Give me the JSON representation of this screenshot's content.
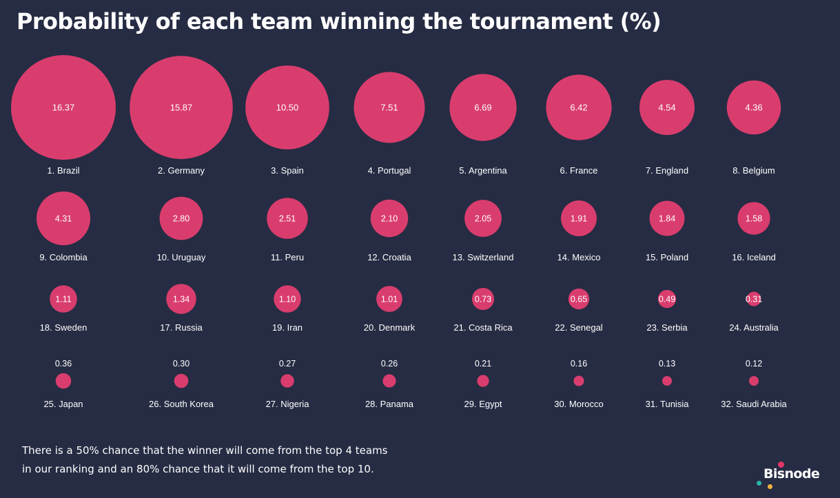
{
  "header": {
    "title": "Probability of each team winning the tournament (%)"
  },
  "footnote": {
    "line1": "There is a 50% chance that the winner will come from the top 4 teams",
    "line2": "in our ranking and an 80% chance that it will come from the top 10."
  },
  "logo": {
    "text": "Bisnode"
  },
  "colors": {
    "background": "#262c43",
    "bubble": "#d93d6e",
    "text": "#ffffff"
  },
  "chart_data": {
    "type": "bubble",
    "title": "Probability of each team winning the tournament (%)",
    "unit": "%",
    "items": [
      {
        "label": "1. Brazil",
        "value": "16.37"
      },
      {
        "label": "2. Germany",
        "value": "15.87"
      },
      {
        "label": "3. Spain",
        "value": "10.50"
      },
      {
        "label": "4. Portugal",
        "value": "7.51"
      },
      {
        "label": "5. Argentina",
        "value": "6.69"
      },
      {
        "label": "6. France",
        "value": "6.42"
      },
      {
        "label": "7. England",
        "value": "4.54"
      },
      {
        "label": "8. Belgium",
        "value": "4.36"
      },
      {
        "label": "9. Colombia",
        "value": "4.31"
      },
      {
        "label": "10. Uruguay",
        "value": "2.80"
      },
      {
        "label": "11. Peru",
        "value": "2.51"
      },
      {
        "label": "12. Croatia",
        "value": "2.10"
      },
      {
        "label": "13. Switzerland",
        "value": "2.05"
      },
      {
        "label": "14. Mexico",
        "value": "1.91"
      },
      {
        "label": "15. Poland",
        "value": "1.84"
      },
      {
        "label": "16. Iceland",
        "value": "1.58"
      },
      {
        "label": "18. Sweden",
        "value": "1.11"
      },
      {
        "label": "17. Russia",
        "value": "1.34"
      },
      {
        "label": "19. Iran",
        "value": "1.10"
      },
      {
        "label": "20. Denmark",
        "value": "1.01"
      },
      {
        "label": "21. Costa Rica",
        "value": "0.73"
      },
      {
        "label": "22. Senegal",
        "value": "0.65"
      },
      {
        "label": "23. Serbia",
        "value": "0.49"
      },
      {
        "label": "24. Australia",
        "value": "0.31"
      },
      {
        "label": "25. Japan",
        "value": "0.36"
      },
      {
        "label": "26. South Korea",
        "value": "0.30"
      },
      {
        "label": "27. Nigeria",
        "value": "0.27"
      },
      {
        "label": "28. Panama",
        "value": "0.26"
      },
      {
        "label": "29. Egypt",
        "value": "0.21"
      },
      {
        "label": "30. Morocco",
        "value": "0.16"
      },
      {
        "label": "31. Tunisia",
        "value": "0.13"
      },
      {
        "label": "32. Saudi Arabia",
        "value": "0.12"
      }
    ]
  }
}
